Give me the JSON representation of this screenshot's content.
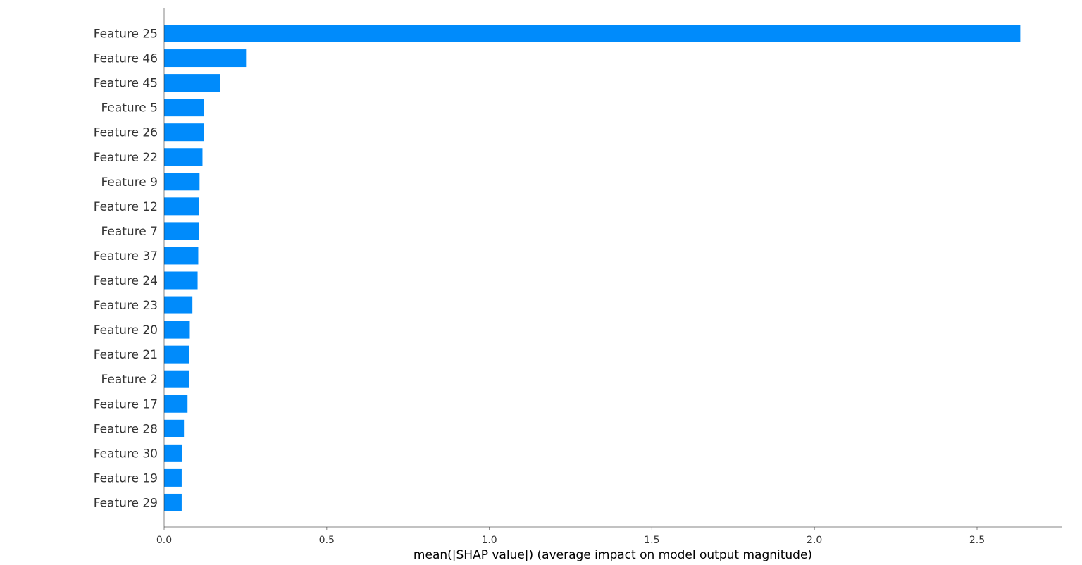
{
  "chart_data": {
    "type": "bar",
    "orientation": "horizontal",
    "categories": [
      "Feature 25",
      "Feature 46",
      "Feature 45",
      "Feature 5",
      "Feature 26",
      "Feature 22",
      "Feature 9",
      "Feature 12",
      "Feature 7",
      "Feature 37",
      "Feature 24",
      "Feature 23",
      "Feature 20",
      "Feature 21",
      "Feature 2",
      "Feature 17",
      "Feature 28",
      "Feature 30",
      "Feature 19",
      "Feature 29"
    ],
    "values": [
      2.633,
      0.252,
      0.172,
      0.122,
      0.122,
      0.118,
      0.109,
      0.107,
      0.107,
      0.105,
      0.103,
      0.087,
      0.079,
      0.077,
      0.076,
      0.072,
      0.061,
      0.055,
      0.054,
      0.054
    ],
    "title": "",
    "xlabel": "mean(|SHAP value|) (average impact on model output magnitude)",
    "ylabel": "",
    "xlim": [
      0,
      2.76
    ],
    "xticks": [
      "0.0",
      "0.5",
      "1.0",
      "1.5",
      "2.0",
      "2.5"
    ],
    "bar_color": "#008bfb",
    "grid": false,
    "legend": "none"
  }
}
